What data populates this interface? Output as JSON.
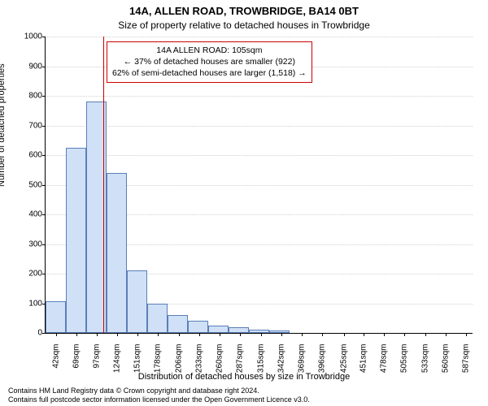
{
  "title": "14A, ALLEN ROAD, TROWBRIDGE, BA14 0BT",
  "subtitle": "Size of property relative to detached houses in Trowbridge",
  "y_axis_label": "Number of detached properties",
  "x_axis_label": "Distribution of detached houses by size in Trowbridge",
  "footer_line1": "Contains HM Land Registry data © Crown copyright and database right 2024.",
  "footer_line2": "Contains full postcode sector information licensed under the Open Government Licence v3.0.",
  "chart": {
    "type": "histogram",
    "ylim": [
      0,
      1000
    ],
    "ytick_step": 100,
    "background_color": "#ffffff",
    "grid_color": "#d0d0d0",
    "grid_style": "dotted",
    "axis_color": "#000000",
    "bar_fill": "#cfe0f7",
    "bar_border": "#5b7fb8",
    "marker_color": "#cc0000",
    "annotation_border": "#cc0000",
    "title_fontsize": 13,
    "subtitle_fontsize": 12,
    "axis_label_fontsize": 11,
    "tick_fontsize": 10,
    "annotation_fontsize": 10.5,
    "footer_fontsize": 9,
    "x_bin_start": 28.5,
    "x_bin_width": 27,
    "x_labels": [
      "42sqm",
      "69sqm",
      "97sqm",
      "124sqm",
      "151sqm",
      "178sqm",
      "206sqm",
      "233sqm",
      "260sqm",
      "287sqm",
      "315sqm",
      "342sqm",
      "369sqm",
      "396sqm",
      "425sqm",
      "451sqm",
      "478sqm",
      "505sqm",
      "533sqm",
      "560sqm",
      "587sqm"
    ],
    "x_tick_centers": [
      42,
      69,
      97,
      124,
      151,
      178,
      206,
      233,
      260,
      287,
      315,
      342,
      369,
      396,
      425,
      451,
      478,
      505,
      533,
      560,
      587
    ],
    "values": [
      108,
      625,
      780,
      540,
      210,
      100,
      60,
      40,
      25,
      18,
      12,
      8,
      0,
      0,
      0,
      0,
      0,
      0,
      0,
      0,
      0
    ],
    "marker_x": 105,
    "annotation": {
      "line1": "14A ALLEN ROAD: 105sqm",
      "line2": "← 37% of detached houses are smaller (922)",
      "line3": "62% of semi-detached houses are larger (1,518) →"
    }
  }
}
